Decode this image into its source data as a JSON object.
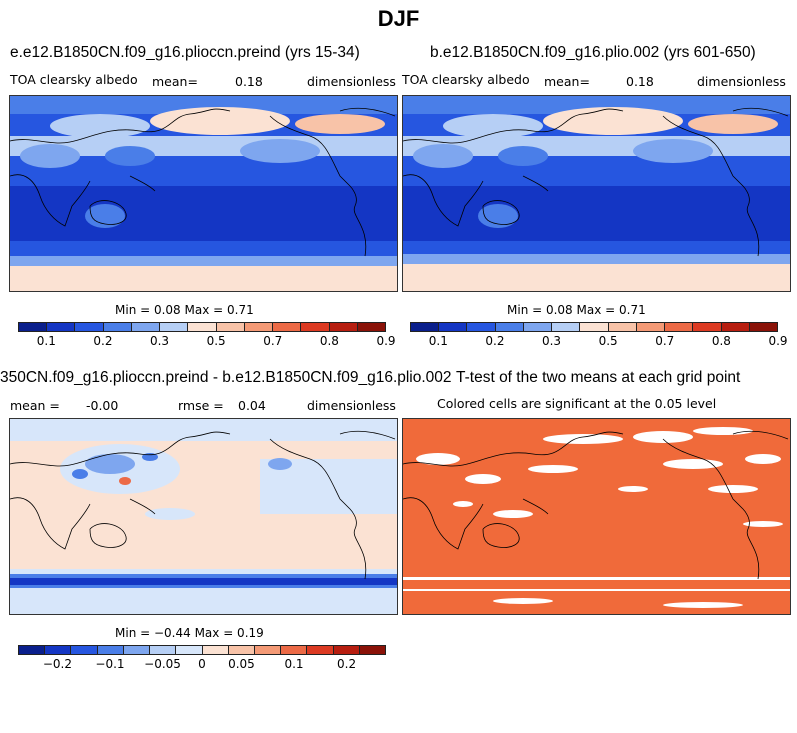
{
  "figure_title": "DJF",
  "panels": {
    "top_left": {
      "title": "e.e12.B1850CN.f09_g16.plioccn.preind (yrs 15-34)",
      "variable": "TOA clearsky albedo",
      "mean_label": "mean=",
      "mean": "0.18",
      "units": "dimensionless",
      "stats": "Min =   0.08 Max =   0.71"
    },
    "top_right": {
      "title": "b.e12.B1850CN.f09_g16.plio.002 (yrs 601-650)",
      "variable": "TOA clearsky albedo",
      "mean_label": "mean=",
      "mean": "0.18",
      "units": "dimensionless",
      "stats": "Min =   0.08 Max =   0.71"
    },
    "bottom_left": {
      "title": "350CN.f09_g16.plioccn.preind - b.e12.B1850CN.f09_g16.plio.002",
      "mean_label": "mean =",
      "mean": "-0.00",
      "rmse_label": "rmse =",
      "rmse": "0.04",
      "units": "dimensionless",
      "stats": "Min =  −0.44 Max =   0.19"
    },
    "bottom_right": {
      "title": "T-test of the two means at each grid point",
      "subtitle": "Colored cells are significant at the 0.05 level"
    }
  },
  "colorbars": {
    "albedo": {
      "colors": [
        "#0a1f8c",
        "#1436c4",
        "#2656e0",
        "#4a7ee8",
        "#7ea6ef",
        "#b6cff5",
        "#fbe2d3",
        "#f8c3a8",
        "#f49a76",
        "#ec6a46",
        "#dc3a22",
        "#b71e10",
        "#8a1208"
      ],
      "ticks": [
        "0.1",
        "0.2",
        "0.3",
        "0.5",
        "0.7",
        "0.8",
        "0.9"
      ]
    },
    "difference": {
      "colors": [
        "#0a1f8c",
        "#1436c4",
        "#2656e0",
        "#4a7ee8",
        "#7ea6ef",
        "#b6cff5",
        "#d7e6fa",
        "#fbe2d3",
        "#f8c3a8",
        "#f49a76",
        "#ec6a46",
        "#dc3a22",
        "#b71e10",
        "#8a1208"
      ],
      "ticks": [
        "−0.2",
        "−0.1",
        "−0.05",
        "0",
        "0.05",
        "0.1",
        "0.2"
      ]
    }
  },
  "chart_data": [
    {
      "type": "heatmap",
      "title": "e.e12.B1850CN.f09_g16.plioccn.preind (yrs 15-34)",
      "variable": "TOA clearsky albedo",
      "units": "dimensionless",
      "mean": 0.18,
      "min": 0.08,
      "max": 0.71,
      "colorbar_ticks": [
        0.1,
        0.2,
        0.3,
        0.5,
        0.7,
        0.8,
        0.9
      ]
    },
    {
      "type": "heatmap",
      "title": "b.e12.B1850CN.f09_g16.plio.002 (yrs 601-650)",
      "variable": "TOA clearsky albedo",
      "units": "dimensionless",
      "mean": 0.18,
      "min": 0.08,
      "max": 0.71,
      "colorbar_ticks": [
        0.1,
        0.2,
        0.3,
        0.5,
        0.7,
        0.8,
        0.9
      ]
    },
    {
      "type": "heatmap",
      "title": "350CN.f09_g16.plioccn.preind - b.e12.B1850CN.f09_g16.plio.002",
      "units": "dimensionless",
      "mean": -0.0,
      "rmse": 0.04,
      "min": -0.44,
      "max": 0.19,
      "colorbar_ticks": [
        -0.2,
        -0.1,
        -0.05,
        0,
        0.05,
        0.1,
        0.2
      ]
    },
    {
      "type": "heatmap",
      "title": "T-test of the two means at each grid point",
      "subtitle": "Colored cells are significant at the 0.05 level",
      "significance_level": 0.05
    }
  ]
}
